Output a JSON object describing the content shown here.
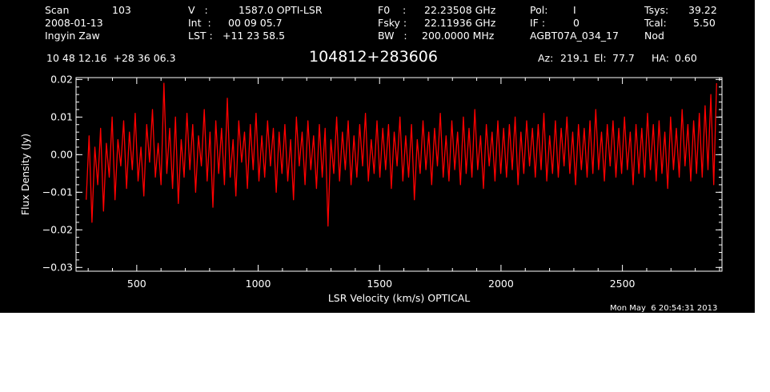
{
  "header": {
    "scan_label": "Scan",
    "scan_value": "103",
    "date": "2008-01-13",
    "observer": "Ingyin Zaw",
    "v_label": "V   :",
    "v_value": "1587.0 OPTI-LSR",
    "int_label": "Int  :",
    "int_value": "00 09 05.7",
    "lst_label": "LST :",
    "lst_value": "+11 23 58.5",
    "f0_label": "F0    :",
    "f0_value": "22.23508 GHz",
    "fsky_label": "Fsky :",
    "fsky_value": "22.11936 GHz",
    "bw_label": "BW   :",
    "bw_value": "200.0000 MHz",
    "pol_label": "Pol:",
    "pol_value": "I",
    "if_label": "IF :",
    "if_value": "0",
    "project": "AGBT07A_034_17",
    "tsys_label": "Tsys:",
    "tsys_value": "39.22",
    "tcal_label": "Tcal:",
    "tcal_value": "5.50",
    "mode": "Nod",
    "coords": "10 48 12.16  +28 36 06.3",
    "source": "104812+283606",
    "az_label": "Az:",
    "az_value": "219.1",
    "el_label": "El:",
    "el_value": "77.7",
    "ha_label": "HA:",
    "ha_value": "0.60",
    "timestamp": "Mon May  6 20:54:31 2013"
  },
  "chart_data": {
    "type": "line",
    "xlabel": "LSR Velocity (km/s) OPTICAL",
    "ylabel": "Flux Density (Jy)",
    "xlim": [
      250,
      2910
    ],
    "ylim": [
      -0.031,
      0.0205
    ],
    "x_ticks": [
      500,
      1000,
      1500,
      2000,
      2500
    ],
    "x_tick_labels": [
      "500",
      "1000",
      "1500",
      "2000",
      "2500"
    ],
    "y_ticks": [
      0.02,
      0.01,
      0.0,
      -0.01,
      -0.02,
      -0.03
    ],
    "y_tick_labels": [
      "0.02",
      "0.01",
      "0.00",
      "−0.01",
      "−0.02",
      "−0.03"
    ],
    "series": [
      {
        "color": "#ff0000",
        "x_start": 292,
        "x_end": 2888,
        "values": [
          -0.012,
          0.005,
          -0.018,
          0.002,
          -0.008,
          0.007,
          -0.015,
          0.003,
          -0.006,
          0.01,
          -0.012,
          0.004,
          -0.003,
          0.009,
          -0.009,
          0.006,
          -0.004,
          0.011,
          -0.007,
          0.002,
          -0.011,
          0.008,
          -0.002,
          0.012,
          -0.006,
          0.003,
          -0.008,
          0.019,
          -0.005,
          0.007,
          -0.009,
          0.01,
          -0.013,
          0.004,
          -0.006,
          0.011,
          -0.004,
          0.008,
          -0.01,
          0.005,
          -0.003,
          0.012,
          -0.007,
          0.006,
          -0.014,
          0.009,
          -0.005,
          0.007,
          -0.008,
          0.015,
          -0.006,
          0.004,
          -0.011,
          0.009,
          -0.002,
          0.006,
          -0.009,
          0.008,
          -0.004,
          0.011,
          -0.007,
          0.005,
          -0.006,
          0.009,
          -0.003,
          0.007,
          -0.01,
          0.006,
          -0.005,
          0.008,
          -0.007,
          0.004,
          -0.012,
          0.01,
          -0.003,
          0.006,
          -0.008,
          0.009,
          -0.004,
          0.005,
          -0.009,
          0.008,
          -0.006,
          0.007,
          -0.019,
          0.004,
          -0.005,
          0.01,
          -0.007,
          0.006,
          -0.004,
          0.009,
          -0.008,
          0.005,
          -0.006,
          0.008,
          -0.003,
          0.011,
          -0.007,
          0.004,
          -0.005,
          0.009,
          -0.006,
          0.007,
          -0.004,
          0.008,
          -0.009,
          0.006,
          -0.003,
          0.01,
          -0.007,
          0.005,
          -0.006,
          0.008,
          -0.012,
          0.004,
          -0.005,
          0.009,
          -0.004,
          0.006,
          -0.008,
          0.007,
          -0.003,
          0.011,
          -0.006,
          0.005,
          -0.007,
          0.009,
          -0.004,
          0.006,
          -0.008,
          0.01,
          -0.005,
          0.007,
          -0.006,
          0.012,
          -0.004,
          0.005,
          -0.009,
          0.008,
          -0.003,
          0.006,
          -0.007,
          0.009,
          -0.005,
          0.007,
          -0.006,
          0.008,
          -0.004,
          0.01,
          -0.008,
          0.006,
          -0.005,
          0.009,
          -0.003,
          0.007,
          -0.006,
          0.008,
          -0.004,
          0.011,
          -0.007,
          0.005,
          -0.005,
          0.009,
          -0.006,
          0.007,
          -0.003,
          0.01,
          -0.005,
          0.006,
          -0.008,
          0.008,
          -0.004,
          0.007,
          -0.006,
          0.009,
          -0.005,
          0.012,
          -0.004,
          0.006,
          -0.007,
          0.008,
          -0.003,
          0.009,
          -0.006,
          0.007,
          -0.005,
          0.01,
          -0.004,
          0.006,
          -0.008,
          0.008,
          -0.005,
          0.007,
          -0.006,
          0.011,
          -0.004,
          0.008,
          -0.007,
          0.009,
          -0.005,
          0.006,
          -0.009,
          0.01,
          -0.004,
          0.007,
          -0.006,
          0.012,
          -0.003,
          0.008,
          -0.007,
          0.009,
          -0.005,
          0.011,
          -0.006,
          0.013,
          -0.004,
          0.016,
          -0.008,
          0.019
        ]
      }
    ]
  }
}
